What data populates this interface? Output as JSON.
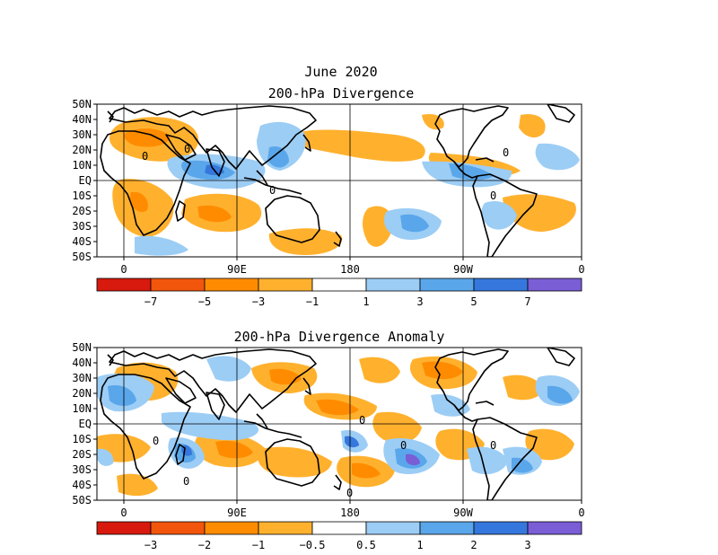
{
  "figure_title": "June 2020",
  "palette": {
    "dark_red": "#d7190e",
    "red_orange": "#f2560c",
    "orange": "#ff8c00",
    "light_orange": "#ffb12e",
    "pale_orange": "#ffc64a",
    "white": "#ffffff",
    "light_blue": "#9ccdf5",
    "mid_blue": "#5aa6ea",
    "blue": "#3577dd",
    "royal_blue": "#2457d8",
    "purple": "#7a5ed6",
    "land_outline": "#000000"
  },
  "panels": [
    {
      "title": "200-hPa Divergence",
      "lat_labels": [
        "50N",
        "40N",
        "30N",
        "20N",
        "10N",
        "EQ",
        "10S",
        "20S",
        "30S",
        "40S",
        "50S"
      ],
      "lon_labels": [
        "0",
        "90E",
        "180",
        "90W",
        "0"
      ],
      "contour_zero_label": "0",
      "colorbar_labels": [
        "−7",
        "−5",
        "−3",
        "−1",
        "1",
        "3",
        "5",
        "7"
      ],
      "colorbar_colors": [
        "#d7190e",
        "#f2560c",
        "#ff8c00",
        "#ffb12e",
        "#ffffff",
        "#9ccdf5",
        "#5aa6ea",
        "#3577dd",
        "#7a5ed6"
      ]
    },
    {
      "title": "200-hPa Divergence Anomaly",
      "lat_labels": [
        "50N",
        "40N",
        "30N",
        "20N",
        "10N",
        "EQ",
        "10S",
        "20S",
        "30S",
        "40S",
        "50S"
      ],
      "lon_labels": [
        "0",
        "90E",
        "180",
        "90W",
        "0"
      ],
      "contour_zero_label": "0",
      "colorbar_labels": [
        "−3",
        "−2",
        "−1",
        "−0.5",
        "0.5",
        "1",
        "2",
        "3"
      ],
      "colorbar_colors": [
        "#d7190e",
        "#f2560c",
        "#ff8c00",
        "#ffb12e",
        "#ffffff",
        "#9ccdf5",
        "#5aa6ea",
        "#3577dd",
        "#7a5ed6"
      ]
    }
  ]
}
